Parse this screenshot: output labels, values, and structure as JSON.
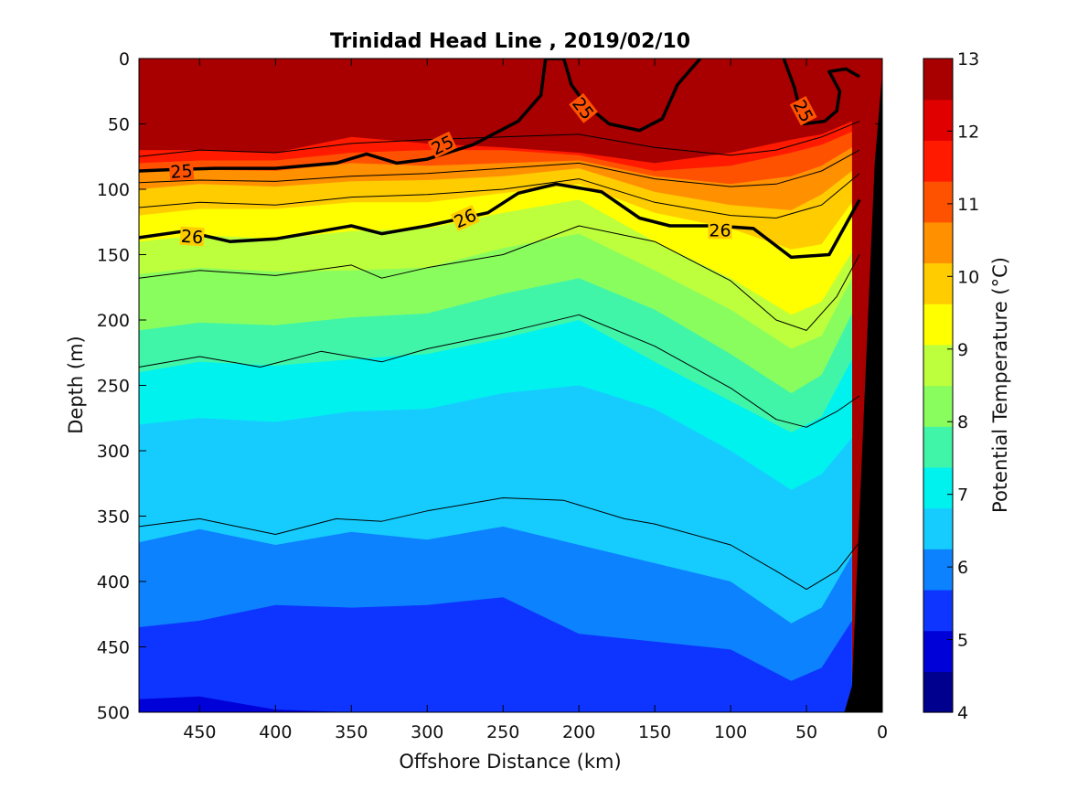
{
  "chart_data": {
    "type": "contour",
    "title": "Trinidad Head Line , 2019/02/10",
    "xlabel": "Offshore Distance (km)",
    "ylabel": "Depth (m)",
    "xlim": [
      490,
      0
    ],
    "ylim": [
      0,
      500
    ],
    "x_reversed": true,
    "y_reversed": true,
    "xticks": [
      "450",
      "400",
      "350",
      "300",
      "250",
      "200",
      "150",
      "100",
      "50",
      "0"
    ],
    "yticks": [
      "0",
      "50",
      "100",
      "150",
      "200",
      "250",
      "300",
      "350",
      "400",
      "450",
      "500"
    ],
    "colorbar": {
      "label": "Potential Temperature (°C)",
      "min": 4,
      "max": 13,
      "ticks": [
        "4",
        "5",
        "6",
        "7",
        "8",
        "9",
        "10",
        "11",
        "12",
        "13"
      ],
      "colors": [
        "#00008f",
        "#0000d9",
        "#0e35ff",
        "#0c82ff",
        "#16ccff",
        "#00f2ef",
        "#40f5a8",
        "#8afd5e",
        "#bdff3c",
        "#ffff00",
        "#ffcc00",
        "#ff9000",
        "#ff5200",
        "#ff1a00",
        "#e10000",
        "#a80000"
      ]
    },
    "isotherms_depth": {
      "x": [
        490,
        450,
        400,
        350,
        300,
        250,
        200,
        150,
        100,
        60,
        40,
        20
      ],
      "levels": [
        {
          "t": 12,
          "depth": [
            70,
            70,
            72,
            60,
            65,
            68,
            72,
            80,
            72,
            62,
            58,
            48
          ]
        },
        {
          "t": 11,
          "depth": [
            80,
            78,
            78,
            72,
            70,
            70,
            74,
            86,
            82,
            72,
            66,
            56
          ]
        },
        {
          "t": 10.5,
          "depth": [
            87,
            85,
            86,
            80,
            82,
            80,
            78,
            90,
            96,
            90,
            82,
            68
          ]
        },
        {
          "t": 10,
          "depth": [
            100,
            96,
            98,
            94,
            93,
            90,
            84,
            102,
            112,
            116,
            104,
            86
          ]
        },
        {
          "t": 9.5,
          "depth": [
            120,
            115,
            115,
            110,
            110,
            103,
            96,
            118,
            130,
            146,
            142,
            110
          ]
        },
        {
          "t": 9,
          "depth": [
            140,
            135,
            138,
            132,
            130,
            118,
            108,
            140,
            168,
            196,
            186,
            148
          ]
        },
        {
          "t": 8.5,
          "depth": [
            165,
            160,
            163,
            162,
            160,
            145,
            134,
            162,
            192,
            222,
            212,
            168
          ]
        },
        {
          "t": 8,
          "depth": [
            208,
            202,
            204,
            198,
            195,
            180,
            168,
            192,
            226,
            256,
            242,
            195
          ]
        },
        {
          "t": 7.5,
          "depth": [
            240,
            232,
            235,
            230,
            226,
            214,
            200,
            232,
            262,
            286,
            274,
            230
          ]
        },
        {
          "t": 7,
          "depth": [
            280,
            275,
            278,
            270,
            268,
            256,
            250,
            268,
            300,
            330,
            318,
            290
          ]
        },
        {
          "t": 6.5,
          "depth": [
            325,
            320,
            322,
            318,
            312,
            302,
            298,
            326,
            342,
            372,
            362,
            342
          ]
        },
        {
          "t": 6,
          "depth": [
            370,
            360,
            372,
            362,
            368,
            358,
            372,
            386,
            400,
            432,
            420,
            380
          ]
        },
        {
          "t": 5.5,
          "depth": [
            435,
            430,
            418,
            420,
            418,
            412,
            440,
            446,
            452,
            476,
            466,
            430
          ]
        },
        {
          "t": 5,
          "depth": [
            490,
            488,
            498,
            500,
            500,
            500,
            500,
            500,
            500,
            500,
            500,
            500
          ]
        }
      ]
    },
    "density_contours": [
      {
        "label": "25",
        "bold": true,
        "x": [
          490,
          470,
          440,
          400,
          360,
          340,
          320,
          300,
          270,
          240,
          225,
          222,
          210,
          205,
          195,
          180,
          160,
          145,
          135,
          120
        ],
        "depth": [
          86,
          85,
          84,
          84,
          80,
          73,
          80,
          77,
          66,
          48,
          28,
          0,
          0,
          20,
          36,
          50,
          55,
          46,
          20,
          0
        ]
      },
      {
        "label": "25",
        "bold": true,
        "x": [
          65,
          58,
          52,
          38,
          30,
          28,
          35,
          24,
          15
        ],
        "depth": [
          0,
          22,
          50,
          48,
          40,
          25,
          10,
          8,
          14
        ]
      },
      {
        "label": "26",
        "bold": true,
        "x": [
          490,
          460,
          430,
          400,
          370,
          350,
          330,
          300,
          260,
          240,
          215,
          185,
          160,
          140,
          110,
          85,
          60,
          35,
          15
        ],
        "depth": [
          137,
          132,
          140,
          138,
          132,
          128,
          134,
          128,
          118,
          103,
          96,
          102,
          122,
          128,
          128,
          130,
          152,
          150,
          108
        ]
      },
      {
        "label": "",
        "bold": false,
        "x": [
          490,
          450,
          400,
          350,
          300,
          250,
          200,
          150,
          100,
          70,
          40,
          15
        ],
        "depth": [
          75,
          70,
          72,
          65,
          62,
          60,
          58,
          68,
          74,
          70,
          60,
          48
        ]
      },
      {
        "label": "",
        "bold": false,
        "x": [
          490,
          450,
          400,
          350,
          300,
          250,
          200,
          150,
          100,
          70,
          40,
          15
        ],
        "depth": [
          95,
          93,
          94,
          90,
          88,
          84,
          80,
          92,
          98,
          96,
          86,
          70
        ]
      },
      {
        "label": "",
        "bold": false,
        "x": [
          490,
          450,
          400,
          350,
          300,
          250,
          200,
          150,
          100,
          70,
          40,
          15
        ],
        "depth": [
          114,
          110,
          112,
          106,
          104,
          100,
          92,
          110,
          120,
          122,
          112,
          88
        ]
      },
      {
        "label": "",
        "bold": false,
        "x": [
          490,
          450,
          400,
          350,
          330,
          300,
          250,
          200,
          150,
          100,
          70,
          50,
          30,
          15
        ],
        "depth": [
          168,
          162,
          166,
          158,
          168,
          160,
          150,
          128,
          140,
          170,
          200,
          208,
          182,
          150
        ]
      },
      {
        "label": "",
        "bold": false,
        "x": [
          490,
          450,
          410,
          370,
          330,
          300,
          250,
          200,
          150,
          100,
          70,
          50,
          30,
          15
        ],
        "depth": [
          236,
          228,
          236,
          224,
          232,
          222,
          210,
          196,
          220,
          252,
          276,
          282,
          270,
          258
        ]
      },
      {
        "label": "",
        "bold": false,
        "x": [
          490,
          450,
          400,
          360,
          330,
          300,
          250,
          210,
          170,
          150,
          100,
          70,
          50,
          30,
          15
        ],
        "depth": [
          358,
          352,
          364,
          352,
          354,
          346,
          336,
          338,
          352,
          356,
          372,
          392,
          406,
          392,
          370
        ]
      }
    ],
    "annotations": [
      "25",
      "26"
    ],
    "land_mask": "black"
  }
}
